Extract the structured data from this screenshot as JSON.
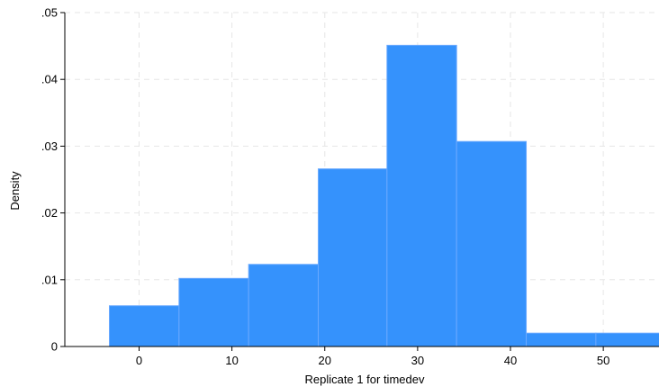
{
  "chart_data": {
    "type": "bar",
    "subtype": "histogram",
    "xlabel": "Replicate 1 for timedev",
    "ylabel": "Density",
    "xlim": [
      -8,
      56
    ],
    "ylim": [
      0,
      0.05
    ],
    "x_ticks": [
      0,
      10,
      20,
      30,
      40,
      50
    ],
    "x_tick_labels": [
      "0",
      "10",
      "20",
      "30",
      "40",
      "50"
    ],
    "y_ticks": [
      0,
      0.01,
      0.02,
      0.03,
      0.04,
      0.05
    ],
    "y_tick_labels": [
      "0",
      ".01",
      ".02",
      ".03",
      ".04",
      ".05"
    ],
    "bins": [
      {
        "start": -3.2,
        "end": 4.3,
        "density": 0.0061
      },
      {
        "start": 4.3,
        "end": 11.8,
        "density": 0.0102
      },
      {
        "start": 11.8,
        "end": 19.3,
        "density": 0.0123
      },
      {
        "start": 19.3,
        "end": 26.7,
        "density": 0.0266
      },
      {
        "start": 26.7,
        "end": 34.2,
        "density": 0.0451
      },
      {
        "start": 34.2,
        "end": 41.7,
        "density": 0.0307
      },
      {
        "start": 41.7,
        "end": 49.2,
        "density": 0.002
      },
      {
        "start": 49.2,
        "end": 56.7,
        "density": 0.002
      }
    ],
    "grid": true,
    "colors": {
      "bar_fill": "#3592fc",
      "bar_edge": "#6aa9ff",
      "grid": "#e6e6e6",
      "axis": "#000000",
      "background": "#ffffff"
    }
  }
}
